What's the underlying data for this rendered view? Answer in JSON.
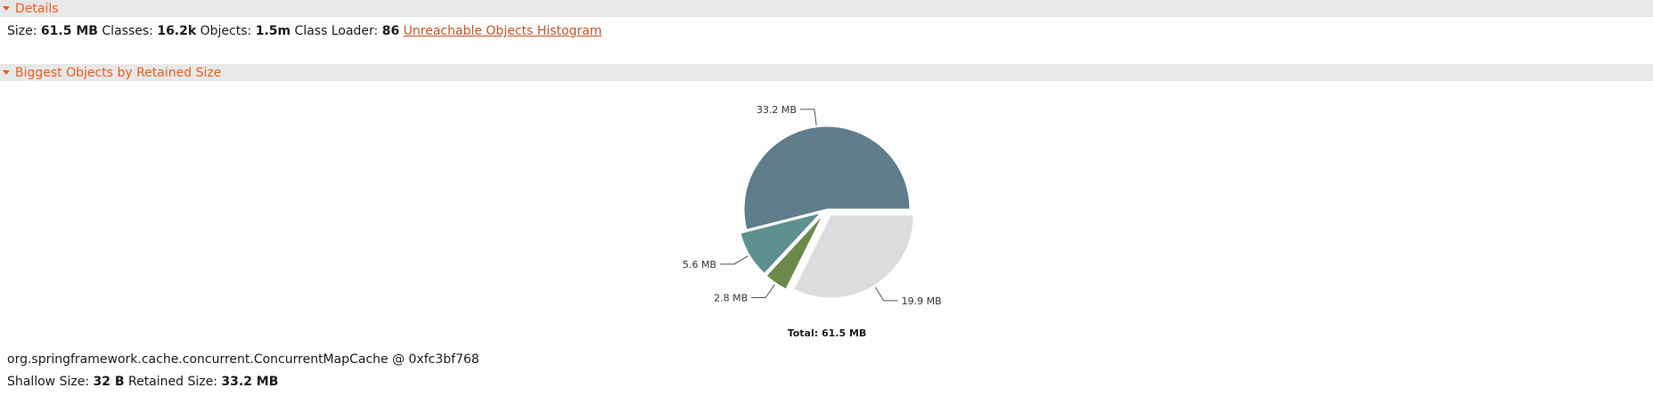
{
  "details": {
    "title": "Details",
    "size_label": "Size:",
    "size_value": "61.5 MB",
    "classes_label": "Classes:",
    "classes_value": "16.2k",
    "objects_label": "Objects:",
    "objects_value": "1.5m",
    "classloader_label": "Class Loader:",
    "classloader_value": "86",
    "histogram_link": "Unreachable Objects Histogram"
  },
  "biggest": {
    "title": "Biggest Objects by Retained Size"
  },
  "chart_data": {
    "type": "pie",
    "title": "",
    "total_label": "Total: 61.5 MB",
    "slices": [
      {
        "label": "33.2 MB",
        "value": 33.2,
        "color": "#607d8b",
        "exploded": false
      },
      {
        "label": "19.9 MB",
        "value": 19.9,
        "color": "#dcdcdc",
        "exploded": true
      },
      {
        "label": "2.8 MB",
        "value": 2.8,
        "color": "#6b8a4a",
        "exploded": true
      },
      {
        "label": "5.6 MB",
        "value": 5.6,
        "color": "#5e9090",
        "exploded": true
      }
    ]
  },
  "selected_object": {
    "name": "org.springframework.cache.concurrent.ConcurrentMapCache @ 0xfc3bf768",
    "shallow_label": "Shallow Size:",
    "shallow_value": "32 B",
    "retained_label": "Retained Size:",
    "retained_value": "33.2 MB"
  }
}
